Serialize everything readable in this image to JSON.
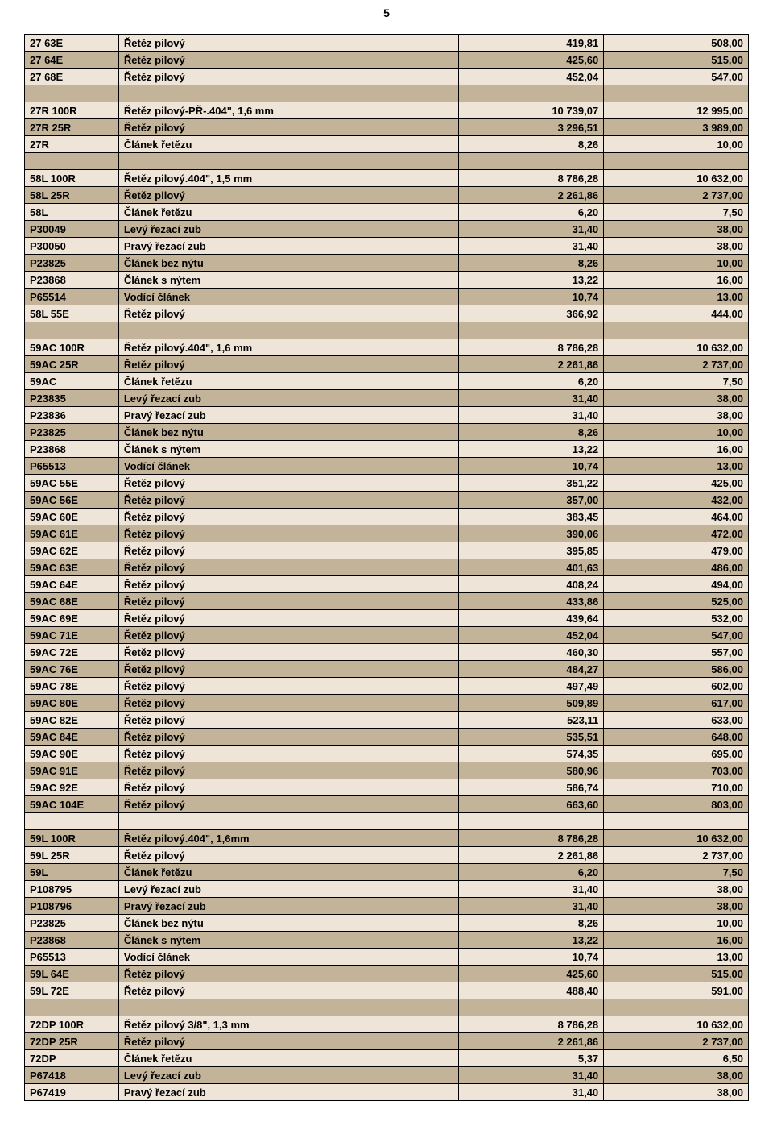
{
  "page_number": "5",
  "colors": {
    "row_a": "#eee5d8",
    "row_b": "#c3b499",
    "border": "#000000",
    "background": "#ffffff"
  },
  "rows": [
    {
      "type": "data",
      "bg": "a",
      "c1": "27 63E",
      "c2": "Řetěz pilový",
      "c3": "419,81",
      "c4": "508,00"
    },
    {
      "type": "data",
      "bg": "b",
      "c1": "27 64E",
      "c2": "Řetěz pilový",
      "c3": "425,60",
      "c4": "515,00"
    },
    {
      "type": "data",
      "bg": "a",
      "c1": "27 68E",
      "c2": "Řetěz pilový",
      "c3": "452,04",
      "c4": "547,00"
    },
    {
      "type": "spacer",
      "bg": "b"
    },
    {
      "type": "data",
      "bg": "a",
      "c1": "27R 100R",
      "c2": "Řetěz pilový-PŘ-.404\", 1,6 mm",
      "c3": "10 739,07",
      "c4": "12 995,00"
    },
    {
      "type": "data",
      "bg": "b",
      "c1": "27R 25R",
      "c2": "Řetěz pilový",
      "c3": "3 296,51",
      "c4": "3 989,00"
    },
    {
      "type": "data",
      "bg": "a",
      "c1": "27R",
      "c2": "Článek řetězu",
      "c3": "8,26",
      "c4": "10,00"
    },
    {
      "type": "spacer",
      "bg": "b"
    },
    {
      "type": "data",
      "bg": "a",
      "c1": "58L 100R",
      "c2": "Řetěz pilový.404\", 1,5 mm",
      "c3": "8 786,28",
      "c4": "10 632,00"
    },
    {
      "type": "data",
      "bg": "b",
      "c1": "58L 25R",
      "c2": "Řetěz pilový",
      "c3": "2 261,86",
      "c4": "2 737,00"
    },
    {
      "type": "data",
      "bg": "a",
      "c1": "58L",
      "c2": "Článek řetězu",
      "c3": "6,20",
      "c4": "7,50"
    },
    {
      "type": "data",
      "bg": "b",
      "c1": "P30049",
      "c2": "Levý řezací zub",
      "c3": "31,40",
      "c4": "38,00"
    },
    {
      "type": "data",
      "bg": "a",
      "c1": "P30050",
      "c2": "Pravý řezací zub",
      "c3": "31,40",
      "c4": "38,00"
    },
    {
      "type": "data",
      "bg": "b",
      "c1": "P23825",
      "c2": "Článek bez nýtu",
      "c3": "8,26",
      "c4": "10,00"
    },
    {
      "type": "data",
      "bg": "a",
      "c1": "P23868",
      "c2": "Článek s nýtem",
      "c3": "13,22",
      "c4": "16,00"
    },
    {
      "type": "data",
      "bg": "b",
      "c1": "P65514",
      "c2": "Vodící článek",
      "c3": "10,74",
      "c4": "13,00"
    },
    {
      "type": "data",
      "bg": "a",
      "c1": "58L 55E",
      "c2": "Řetěz pilový",
      "c3": "366,92",
      "c4": "444,00"
    },
    {
      "type": "spacer",
      "bg": "b"
    },
    {
      "type": "data",
      "bg": "a",
      "c1": "59AC 100R",
      "c2": "Řetěz pilový.404\", 1,6 mm",
      "c3": "8 786,28",
      "c4": "10 632,00"
    },
    {
      "type": "data",
      "bg": "b",
      "c1": "59AC 25R",
      "c2": "Řetěz pilový",
      "c3": "2 261,86",
      "c4": "2 737,00"
    },
    {
      "type": "data",
      "bg": "a",
      "c1": "59AC",
      "c2": "Článek řetězu",
      "c3": "6,20",
      "c4": "7,50"
    },
    {
      "type": "data",
      "bg": "b",
      "c1": "P23835",
      "c2": "Levý řezací zub",
      "c3": "31,40",
      "c4": "38,00"
    },
    {
      "type": "data",
      "bg": "a",
      "c1": "P23836",
      "c2": "Pravý řezací zub",
      "c3": "31,40",
      "c4": "38,00"
    },
    {
      "type": "data",
      "bg": "b",
      "c1": "P23825",
      "c2": "Článek bez nýtu",
      "c3": "8,26",
      "c4": "10,00"
    },
    {
      "type": "data",
      "bg": "a",
      "c1": "P23868",
      "c2": "Článek s nýtem",
      "c3": "13,22",
      "c4": "16,00"
    },
    {
      "type": "data",
      "bg": "b",
      "c1": "P65513",
      "c2": "Vodící článek",
      "c3": "10,74",
      "c4": "13,00"
    },
    {
      "type": "data",
      "bg": "a",
      "c1": "59AC 55E",
      "c2": "Řetěz pilový",
      "c3": "351,22",
      "c4": "425,00"
    },
    {
      "type": "data",
      "bg": "b",
      "c1": "59AC 56E",
      "c2": "Řetěz pilový",
      "c3": "357,00",
      "c4": "432,00"
    },
    {
      "type": "data",
      "bg": "a",
      "c1": "59AC 60E",
      "c2": "Řetěz pilový",
      "c3": "383,45",
      "c4": "464,00"
    },
    {
      "type": "data",
      "bg": "b",
      "c1": "59AC 61E",
      "c2": "Řetěz pilový",
      "c3": "390,06",
      "c4": "472,00"
    },
    {
      "type": "data",
      "bg": "a",
      "c1": "59AC 62E",
      "c2": "Řetěz pilový",
      "c3": "395,85",
      "c4": "479,00"
    },
    {
      "type": "data",
      "bg": "b",
      "c1": "59AC 63E",
      "c2": "Řetěz pilový",
      "c3": "401,63",
      "c4": "486,00"
    },
    {
      "type": "data",
      "bg": "a",
      "c1": "59AC 64E",
      "c2": "Řetěz pilový",
      "c3": "408,24",
      "c4": "494,00"
    },
    {
      "type": "data",
      "bg": "b",
      "c1": "59AC 68E",
      "c2": "Řetěz pilový",
      "c3": "433,86",
      "c4": "525,00"
    },
    {
      "type": "data",
      "bg": "a",
      "c1": "59AC 69E",
      "c2": "Řetěz pilový",
      "c3": "439,64",
      "c4": "532,00"
    },
    {
      "type": "data",
      "bg": "b",
      "c1": "59AC 71E",
      "c2": "Řetěz pilový",
      "c3": "452,04",
      "c4": "547,00"
    },
    {
      "type": "data",
      "bg": "a",
      "c1": "59AC 72E",
      "c2": "Řetěz pilový",
      "c3": "460,30",
      "c4": "557,00"
    },
    {
      "type": "data",
      "bg": "b",
      "c1": "59AC 76E",
      "c2": "Řetěz pilový",
      "c3": "484,27",
      "c4": "586,00"
    },
    {
      "type": "data",
      "bg": "a",
      "c1": "59AC 78E",
      "c2": "Řetěz pilový",
      "c3": "497,49",
      "c4": "602,00"
    },
    {
      "type": "data",
      "bg": "b",
      "c1": "59AC 80E",
      "c2": "Řetěz pilový",
      "c3": "509,89",
      "c4": "617,00"
    },
    {
      "type": "data",
      "bg": "a",
      "c1": "59AC 82E",
      "c2": "Řetěz pilový",
      "c3": "523,11",
      "c4": "633,00"
    },
    {
      "type": "data",
      "bg": "b",
      "c1": "59AC 84E",
      "c2": "Řetěz pilový",
      "c3": "535,51",
      "c4": "648,00"
    },
    {
      "type": "data",
      "bg": "a",
      "c1": "59AC 90E",
      "c2": "Řetěz pilový",
      "c3": "574,35",
      "c4": "695,00"
    },
    {
      "type": "data",
      "bg": "b",
      "c1": "59AC 91E",
      "c2": "Řetěz pilový",
      "c3": "580,96",
      "c4": "703,00"
    },
    {
      "type": "data",
      "bg": "a",
      "c1": "59AC 92E",
      "c2": "Řetěz pilový",
      "c3": "586,74",
      "c4": "710,00"
    },
    {
      "type": "data",
      "bg": "b",
      "c1": "59AC 104E",
      "c2": "Řetěz pilový",
      "c3": "663,60",
      "c4": "803,00"
    },
    {
      "type": "spacer",
      "bg": "a"
    },
    {
      "type": "data",
      "bg": "b",
      "c1": "59L 100R",
      "c2": "Řetěz pilový.404\", 1,6mm",
      "c3": "8 786,28",
      "c4": "10 632,00"
    },
    {
      "type": "data",
      "bg": "a",
      "c1": "59L 25R",
      "c2": "Řetěz pilový",
      "c3": "2 261,86",
      "c4": "2 737,00"
    },
    {
      "type": "data",
      "bg": "b",
      "c1": "59L",
      "c2": "Článek řetězu",
      "c3": "6,20",
      "c4": "7,50"
    },
    {
      "type": "data",
      "bg": "a",
      "c1": "P108795",
      "c2": "Levý řezací zub",
      "c3": "31,40",
      "c4": "38,00"
    },
    {
      "type": "data",
      "bg": "b",
      "c1": "P108796",
      "c2": "Pravý řezací zub",
      "c3": "31,40",
      "c4": "38,00"
    },
    {
      "type": "data",
      "bg": "a",
      "c1": "P23825",
      "c2": "Článek bez nýtu",
      "c3": "8,26",
      "c4": "10,00"
    },
    {
      "type": "data",
      "bg": "b",
      "c1": "P23868",
      "c2": "Článek s nýtem",
      "c3": "13,22",
      "c4": "16,00"
    },
    {
      "type": "data",
      "bg": "a",
      "c1": "P65513",
      "c2": "Vodící článek",
      "c3": "10,74",
      "c4": "13,00"
    },
    {
      "type": "data",
      "bg": "b",
      "c1": "59L 64E",
      "c2": "Řetěz pilový",
      "c3": "425,60",
      "c4": "515,00"
    },
    {
      "type": "data",
      "bg": "a",
      "c1": "59L 72E",
      "c2": "Řetěz pilový",
      "c3": "488,40",
      "c4": "591,00"
    },
    {
      "type": "spacer",
      "bg": "b"
    },
    {
      "type": "data",
      "bg": "a",
      "c1": "72DP 100R",
      "c2": "Řetěz pilový 3/8\", 1,3 mm",
      "c3": "8 786,28",
      "c4": "10 632,00"
    },
    {
      "type": "data",
      "bg": "b",
      "c1": "72DP 25R",
      "c2": "Řetěz pilový",
      "c3": "2 261,86",
      "c4": "2 737,00"
    },
    {
      "type": "data",
      "bg": "a",
      "c1": "72DP",
      "c2": "Článek řetězu",
      "c3": "5,37",
      "c4": "6,50"
    },
    {
      "type": "data",
      "bg": "b",
      "c1": "P67418",
      "c2": "Levý řezací zub",
      "c3": "31,40",
      "c4": "38,00"
    },
    {
      "type": "data",
      "bg": "a",
      "c1": "P67419",
      "c2": "Pravý řezací zub",
      "c3": "31,40",
      "c4": "38,00"
    }
  ]
}
